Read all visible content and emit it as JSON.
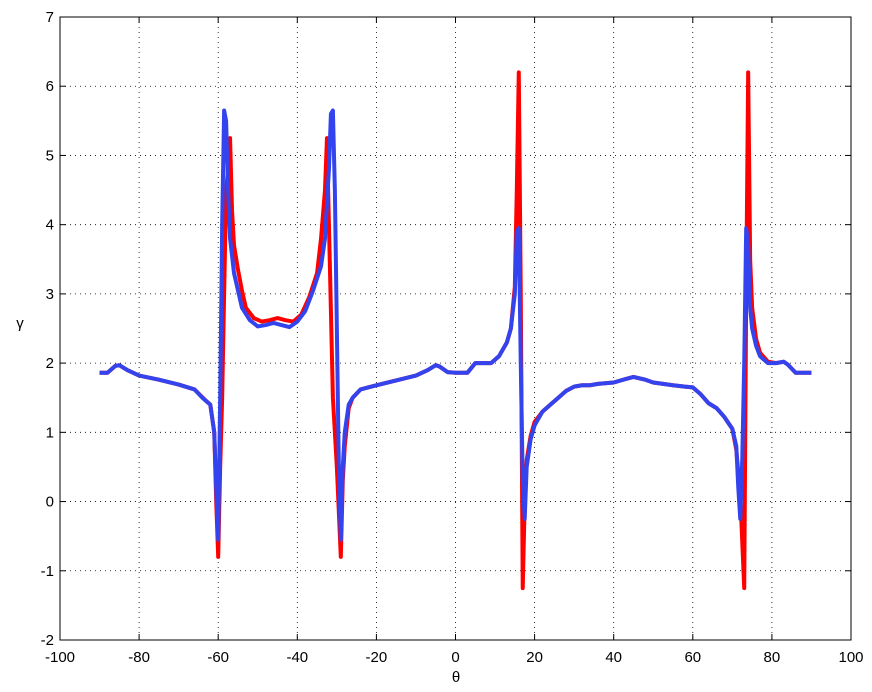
{
  "chart_data": {
    "type": "line",
    "xlabel": "θ",
    "ylabel": "γ",
    "xlim": [
      -100,
      100
    ],
    "xticks": [
      -100,
      -80,
      -60,
      -40,
      -20,
      0,
      20,
      40,
      60,
      80,
      100
    ],
    "ylim": [
      -2,
      7
    ],
    "yticks": [
      -2,
      -1,
      0,
      1,
      2,
      3,
      4,
      5,
      6,
      7
    ],
    "grid": true,
    "series": [
      {
        "color": "#ff0000",
        "x": [
          -90,
          -88,
          -86,
          -85,
          -83,
          -80,
          -75,
          -70,
          -66,
          -63,
          -62,
          -61,
          -60.5,
          -60,
          -59.5,
          -59,
          -58.5,
          -58,
          -57.5,
          -57,
          -56.5,
          -56,
          -55,
          -54,
          -53,
          -51,
          -49,
          -47,
          -45,
          -43,
          -41,
          -39,
          -37,
          -35,
          -34,
          -33,
          -32.5,
          -32,
          -31,
          -30,
          -29,
          -28.5,
          -28,
          -27,
          -26,
          -24,
          -22,
          -20,
          -15,
          -10,
          -7,
          -5,
          -4,
          -2,
          0,
          3,
          5,
          7,
          9,
          11,
          13,
          14,
          15,
          15.5,
          16,
          16.5,
          17,
          17.5,
          18,
          19,
          20,
          22,
          24,
          26,
          28,
          30,
          32,
          34,
          36,
          40,
          43,
          45,
          48,
          50,
          55,
          58,
          60,
          62,
          64,
          66,
          68,
          70,
          71,
          72,
          73,
          73.5,
          74,
          74.5,
          75,
          76,
          77,
          79,
          81,
          83,
          84,
          86,
          88,
          90
        ],
        "values": [
          1.86,
          1.86,
          1.96,
          1.97,
          1.9,
          1.82,
          1.76,
          1.69,
          1.62,
          1.45,
          1.4,
          1.0,
          0.0,
          -0.8,
          0.5,
          1.5,
          3.0,
          4.5,
          4.8,
          5.25,
          4.2,
          3.7,
          3.35,
          3.05,
          2.8,
          2.65,
          2.6,
          2.62,
          2.65,
          2.62,
          2.6,
          2.7,
          2.95,
          3.3,
          3.8,
          4.5,
          5.25,
          4.0,
          1.5,
          0.5,
          -0.8,
          0.3,
          0.8,
          1.35,
          1.5,
          1.62,
          1.65,
          1.68,
          1.75,
          1.82,
          1.9,
          1.97,
          1.95,
          1.87,
          1.86,
          1.86,
          2.0,
          2.0,
          2.0,
          2.1,
          2.3,
          2.5,
          3.1,
          4.5,
          6.2,
          3.0,
          -1.25,
          0.0,
          0.6,
          0.95,
          1.15,
          1.3,
          1.4,
          1.5,
          1.6,
          1.66,
          1.68,
          1.68,
          1.7,
          1.72,
          1.77,
          1.8,
          1.76,
          1.72,
          1.68,
          1.66,
          1.65,
          1.55,
          1.42,
          1.35,
          1.22,
          1.05,
          0.75,
          0.1,
          -1.25,
          3.0,
          6.2,
          3.5,
          2.8,
          2.35,
          2.15,
          2.02,
          2.0,
          2.02,
          1.98,
          1.86,
          1.86,
          1.86
        ]
      },
      {
        "color": "#3344ee",
        "x": [
          -90,
          -88,
          -86,
          -85,
          -83,
          -80,
          -75,
          -70,
          -66,
          -64,
          -62,
          -61,
          -60.5,
          -60,
          -59.5,
          -59,
          -58.5,
          -58,
          -57.5,
          -57,
          -56,
          -55,
          -54,
          -52,
          -50,
          -48,
          -46,
          -44,
          -42,
          -40,
          -38,
          -36,
          -34,
          -33,
          -32,
          -31.5,
          -31,
          -30.5,
          -30,
          -29.5,
          -29,
          -28.5,
          -28,
          -27,
          -26,
          -24,
          -22,
          -20,
          -15,
          -10,
          -7,
          -5,
          -4,
          -2,
          0,
          3,
          5,
          7,
          9,
          11,
          13,
          14,
          15,
          15.5,
          16,
          16.5,
          17,
          17.5,
          18,
          19,
          20,
          22,
          24,
          26,
          28,
          30,
          32,
          34,
          36,
          40,
          43,
          45,
          48,
          50,
          55,
          58,
          60,
          62,
          64,
          66,
          68,
          70,
          71,
          71.5,
          72,
          72.5,
          73,
          73.5,
          74,
          74.5,
          75,
          76,
          77,
          79,
          81,
          83,
          84,
          86,
          88,
          90
        ],
        "values": [
          1.86,
          1.86,
          1.96,
          1.97,
          1.9,
          1.82,
          1.76,
          1.69,
          1.62,
          1.5,
          1.4,
          1.0,
          0.2,
          -0.55,
          1.5,
          4.0,
          5.65,
          5.5,
          4.5,
          3.8,
          3.3,
          3.05,
          2.8,
          2.62,
          2.53,
          2.55,
          2.58,
          2.55,
          2.52,
          2.6,
          2.75,
          3.05,
          3.4,
          3.8,
          4.8,
          5.6,
          5.65,
          4.5,
          2.5,
          0.5,
          -0.55,
          0.5,
          1.0,
          1.4,
          1.5,
          1.62,
          1.65,
          1.68,
          1.75,
          1.82,
          1.9,
          1.97,
          1.95,
          1.87,
          1.86,
          1.86,
          2.0,
          2.0,
          2.0,
          2.1,
          2.3,
          2.5,
          3.0,
          3.9,
          3.95,
          2.0,
          0.3,
          -0.25,
          0.5,
          0.9,
          1.1,
          1.3,
          1.4,
          1.5,
          1.6,
          1.66,
          1.68,
          1.68,
          1.7,
          1.72,
          1.77,
          1.8,
          1.76,
          1.72,
          1.68,
          1.66,
          1.65,
          1.55,
          1.42,
          1.35,
          1.22,
          1.05,
          0.8,
          0.2,
          -0.25,
          0.6,
          2.0,
          3.95,
          3.7,
          2.8,
          2.5,
          2.25,
          2.1,
          2.0,
          2.0,
          2.02,
          1.98,
          1.86,
          1.86,
          1.86
        ]
      }
    ]
  }
}
